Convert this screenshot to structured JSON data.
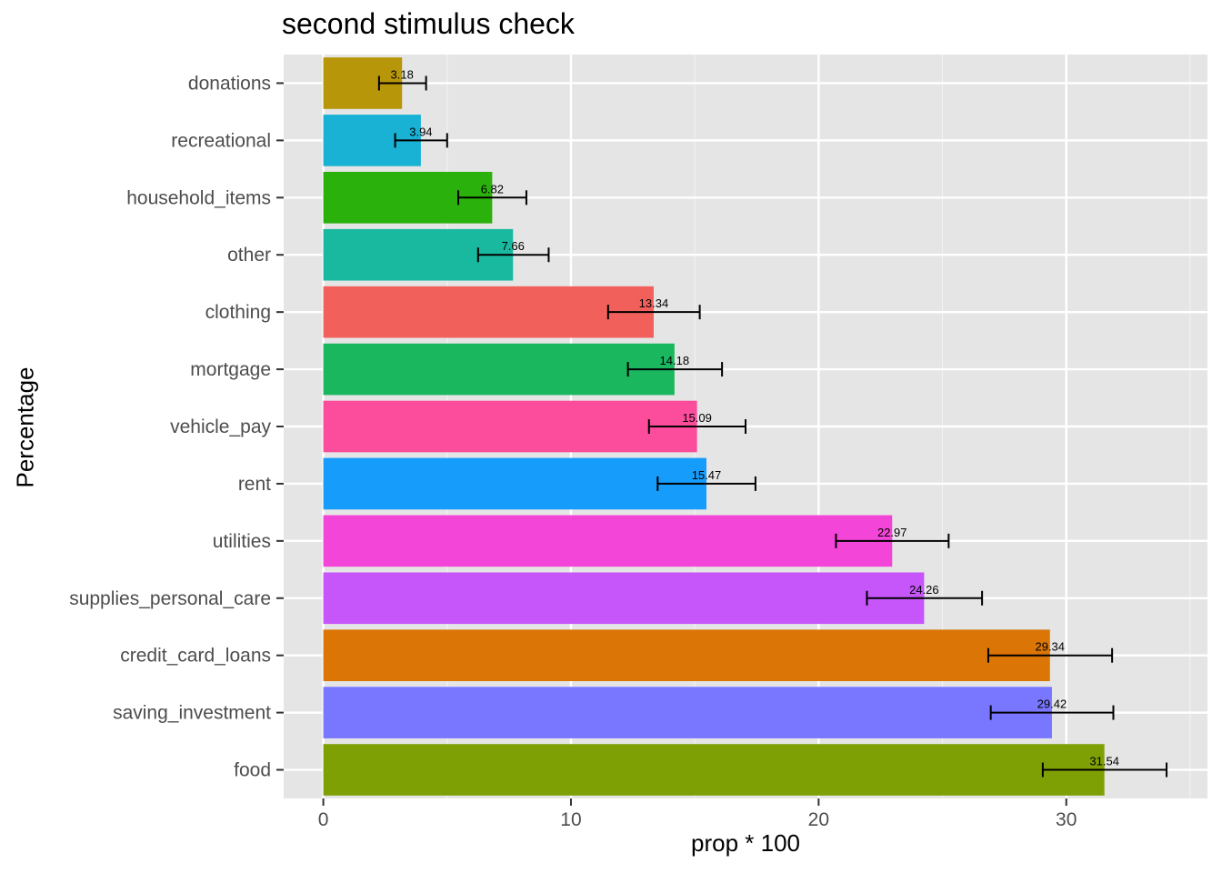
{
  "chart_data": {
    "type": "bar",
    "orientation": "horizontal",
    "title": "second stimulus check",
    "xlabel": "prop * 100",
    "ylabel": "Percentage",
    "xlim": [
      -1.6,
      35.7
    ],
    "xticks": [
      0,
      10,
      20,
      30
    ],
    "grid": true,
    "legend": "none",
    "bars": [
      {
        "category": "donations",
        "value": 3.18,
        "label": "3.18",
        "err_low": 2.25,
        "err_high": 4.15,
        "color": "#B8960A"
      },
      {
        "category": "recreational",
        "value": 3.94,
        "label": "3.94",
        "err_low": 2.9,
        "err_high": 5.0,
        "color": "#1AB2D4"
      },
      {
        "category": "household_items",
        "value": 6.82,
        "label": "6.82",
        "err_low": 5.45,
        "err_high": 8.2,
        "color": "#2BB10B"
      },
      {
        "category": "other",
        "value": 7.66,
        "label": "7.66",
        "err_low": 6.25,
        "err_high": 9.1,
        "color": "#19B9A0"
      },
      {
        "category": "clothing",
        "value": 13.34,
        "label": "13.34",
        "err_low": 11.5,
        "err_high": 15.2,
        "color": "#F2605C"
      },
      {
        "category": "mortgage",
        "value": 14.18,
        "label": "14.18",
        "err_low": 12.3,
        "err_high": 16.1,
        "color": "#1BB75E"
      },
      {
        "category": "vehicle_pay",
        "value": 15.09,
        "label": "15.09",
        "err_low": 13.15,
        "err_high": 17.05,
        "color": "#FC4C9C"
      },
      {
        "category": "rent",
        "value": 15.47,
        "label": "15.47",
        "err_low": 13.5,
        "err_high": 17.45,
        "color": "#169CFA"
      },
      {
        "category": "utilities",
        "value": 22.97,
        "label": "22.97",
        "err_low": 20.7,
        "err_high": 25.25,
        "color": "#F345D7"
      },
      {
        "category": "supplies_personal_care",
        "value": 24.26,
        "label": "24.26",
        "err_low": 21.95,
        "err_high": 26.6,
        "color": "#C655FA"
      },
      {
        "category": "credit_card_loans",
        "value": 29.34,
        "label": "29.34",
        "err_low": 26.85,
        "err_high": 31.85,
        "color": "#DA7506"
      },
      {
        "category": "saving_investment",
        "value": 29.42,
        "label": "29.42",
        "err_low": 26.95,
        "err_high": 31.9,
        "color": "#7977FF"
      },
      {
        "category": "food",
        "value": 31.54,
        "label": "31.54",
        "err_low": 29.05,
        "err_high": 34.05,
        "color": "#7FA005"
      }
    ]
  }
}
